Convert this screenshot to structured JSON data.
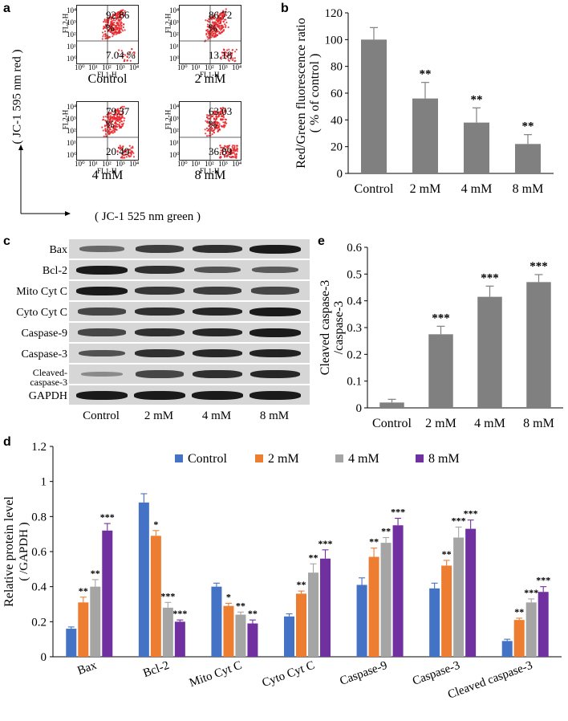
{
  "panel_labels": {
    "a": "a",
    "b": "b",
    "c": "c",
    "d": "d",
    "e": "e"
  },
  "panel_a": {
    "y_title": "( JC-1 595 nm red )",
    "x_title": "( JC-1 525 nm green )",
    "y_channel": "FL2-H",
    "x_channel": "FL1-H",
    "plots": [
      {
        "condition": "Control",
        "upper": "92.86 %",
        "lower": "7.04 %"
      },
      {
        "condition": "2 mM",
        "upper": "86.72 %",
        "lower": "13.18 %"
      },
      {
        "condition": "4 mM",
        "upper": "79.37 %",
        "lower": "20.49 %"
      },
      {
        "condition": "8 mM",
        "upper": "63.03 %",
        "lower": "36.89 %"
      }
    ],
    "ticks": [
      "10⁰",
      "10¹",
      "10²",
      "10³",
      "10⁴"
    ]
  },
  "panel_c": {
    "rows": [
      "Bax",
      "Bcl-2",
      "Mito Cyt C",
      "Cyto Cyt C",
      "Caspase-9",
      "Caspase-3",
      "Cleaved-caspase-3",
      "GAPDH"
    ],
    "lanes": [
      "Control",
      "2 mM",
      "4 mM",
      "8 mM"
    ],
    "band_intensity": [
      [
        0.45,
        0.75,
        0.85,
        1.0
      ],
      [
        1.0,
        0.85,
        0.6,
        0.55
      ],
      [
        1.0,
        0.8,
        0.75,
        0.7
      ],
      [
        0.7,
        0.85,
        0.9,
        1.0
      ],
      [
        0.7,
        0.85,
        0.9,
        1.0
      ],
      [
        0.6,
        0.85,
        0.9,
        0.95
      ],
      [
        0.2,
        0.7,
        0.85,
        0.9
      ],
      [
        1.0,
        1.0,
        1.0,
        1.0
      ]
    ]
  },
  "chart_data": [
    {
      "id": "b",
      "type": "bar",
      "categories": [
        "Control",
        "2 mM",
        "4 mM",
        "8 mM"
      ],
      "values": [
        100,
        56,
        38,
        22
      ],
      "errors": [
        9,
        12,
        11,
        7
      ],
      "significance": [
        "",
        "**",
        "**",
        "**"
      ],
      "ylabel": "Red/Green fluorescence ratio",
      "ylabel2": "( % of control )",
      "ylim": [
        0,
        120
      ],
      "yticks": [
        "0",
        "20",
        "40",
        "60",
        "80",
        "100",
        "120"
      ],
      "color": "#808080"
    },
    {
      "id": "e",
      "type": "bar",
      "categories": [
        "Control",
        "2 mM",
        "4 mM",
        "8 mM"
      ],
      "values": [
        0.02,
        0.275,
        0.415,
        0.47
      ],
      "errors": [
        0.012,
        0.03,
        0.04,
        0.028
      ],
      "significance": [
        "",
        "***",
        "***",
        "***"
      ],
      "ylabel": "Cleaved caspase-3",
      "ylabel2": "/caspase-3",
      "ylim": [
        0,
        0.6
      ],
      "yticks": [
        "0",
        "0.1",
        "0.2",
        "0.3",
        "0.4",
        "0.5",
        "0.6"
      ],
      "color": "#808080"
    },
    {
      "id": "d",
      "type": "bar",
      "categories": [
        "Bax",
        "Bcl-2",
        "Mito Cyt C",
        "Cyto Cyt C",
        "Caspase-9",
        "Caspase-3",
        "Cleaved caspase-3"
      ],
      "series": [
        {
          "name": "Control",
          "color": "#4472C4",
          "values": [
            0.16,
            0.88,
            0.4,
            0.23,
            0.41,
            0.39,
            0.09
          ],
          "errors": [
            0.01,
            0.05,
            0.02,
            0.015,
            0.04,
            0.03,
            0.01
          ],
          "significance": [
            "",
            "",
            "",
            "",
            "",
            "",
            ""
          ]
        },
        {
          "name": "2 mM",
          "color": "#ED7D31",
          "values": [
            0.31,
            0.69,
            0.29,
            0.36,
            0.57,
            0.52,
            0.21
          ],
          "errors": [
            0.03,
            0.03,
            0.015,
            0.015,
            0.05,
            0.03,
            0.01
          ],
          "significance": [
            "**",
            "*",
            "*",
            "**",
            "**",
            "**",
            "**"
          ]
        },
        {
          "name": "4 mM",
          "color": "#A5A5A5",
          "values": [
            0.4,
            0.28,
            0.24,
            0.48,
            0.65,
            0.68,
            0.31
          ],
          "errors": [
            0.04,
            0.03,
            0.015,
            0.05,
            0.03,
            0.06,
            0.02
          ],
          "significance": [
            "**",
            "***",
            "**",
            "**",
            "**",
            "***",
            "***"
          ]
        },
        {
          "name": "8 mM",
          "color": "#7030A0",
          "values": [
            0.72,
            0.2,
            0.19,
            0.56,
            0.75,
            0.73,
            0.37
          ],
          "errors": [
            0.04,
            0.01,
            0.02,
            0.05,
            0.04,
            0.05,
            0.03
          ],
          "significance": [
            "***",
            "***",
            "**",
            "***",
            "***",
            "***",
            "***"
          ]
        }
      ],
      "ylabel": "Relative protein level",
      "ylabel2": "( /GAPDH )",
      "ylim": [
        0,
        1.2
      ],
      "yticks": [
        "0",
        "0.2",
        "0.4",
        "0.6",
        "0.8",
        "1",
        "1.2"
      ],
      "legend": "top"
    }
  ]
}
